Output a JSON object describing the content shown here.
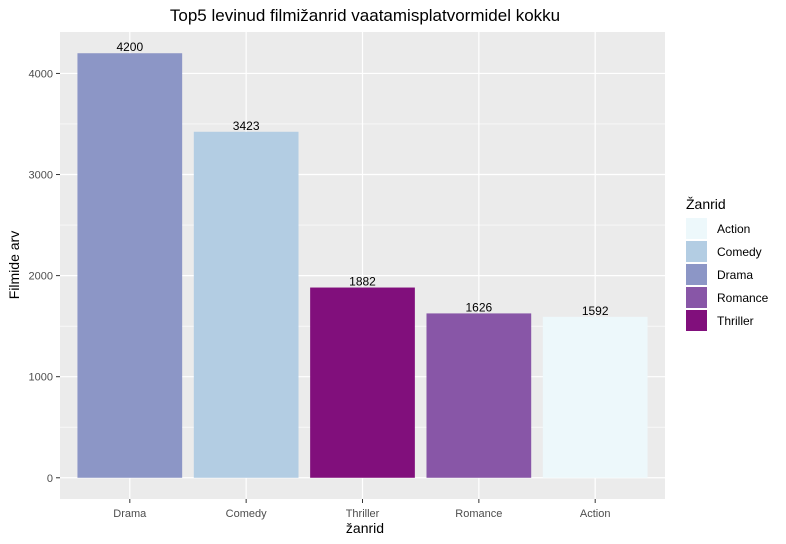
{
  "chart_data": {
    "type": "bar",
    "title": "Top5 levinud filmižanrid vaatamisplatvormidel kokku",
    "xlabel": "žanrid",
    "ylabel": "Filmide arv",
    "categories": [
      "Drama",
      "Comedy",
      "Thriller",
      "Romance",
      "Action"
    ],
    "values": [
      4200,
      3423,
      1882,
      1626,
      1592
    ],
    "data_labels": [
      "4200",
      "3423",
      "1882",
      "1626",
      "1592"
    ],
    "bar_colors": [
      "#8c96c6",
      "#b3cde3",
      "#810f7c",
      "#8856a7",
      "#edf8fb"
    ],
    "ylim": [
      -210,
      4410
    ],
    "yticks": [
      0,
      1000,
      2000,
      3000,
      4000
    ],
    "ytick_labels": [
      "0",
      "1000",
      "2000",
      "3000",
      "4000"
    ],
    "grid": true,
    "panel_background": "#ebebeb",
    "legend": {
      "title": "Žanrid",
      "position": "right",
      "items": [
        {
          "label": "Action",
          "color": "#edf8fb"
        },
        {
          "label": "Comedy",
          "color": "#b3cde3"
        },
        {
          "label": "Drama",
          "color": "#8c96c6"
        },
        {
          "label": "Romance",
          "color": "#8856a7"
        },
        {
          "label": "Thriller",
          "color": "#810f7c"
        }
      ]
    }
  }
}
